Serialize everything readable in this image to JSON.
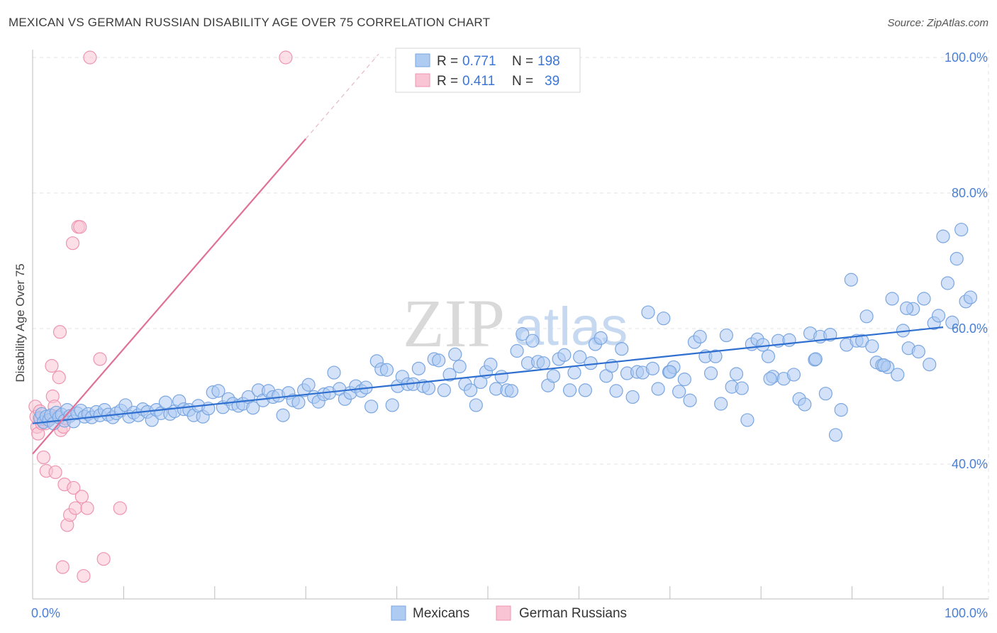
{
  "title": "MEXICAN VS GERMAN RUSSIAN DISABILITY AGE OVER 75 CORRELATION CHART",
  "source": "Source: ZipAtlas.com",
  "watermark": {
    "zip": "ZIP",
    "atlas": "atlas"
  },
  "colors": {
    "blue_fill": "#aecbf2",
    "blue_stroke": "#7aa6e0",
    "blue_line": "#2f6fd0",
    "pink_fill": "#f9c4d3",
    "pink_stroke": "#ee94b1",
    "pink_line": "#e07098",
    "tick_label": "#4a7fd4",
    "grid": "#e3e3e3"
  },
  "legend": {
    "rows": [
      {
        "r_label": "R =",
        "r_value": "0.771",
        "n_label": "N =",
        "n_value": "198",
        "series": "blue"
      },
      {
        "r_label": "R =",
        "r_value": "0.411",
        "n_label": "N =",
        "n_value": "39",
        "series": "pink"
      }
    ]
  },
  "bottom_legend": [
    "Mexicans",
    "German Russians"
  ],
  "chart_data": {
    "type": "scatter",
    "title": "MEXICAN VS GERMAN RUSSIAN DISABILITY AGE OVER 75 CORRELATION CHART",
    "xlabel": "",
    "ylabel": "Disability Age Over 75",
    "xlim": [
      0,
      100
    ],
    "ylim": [
      20,
      102
    ],
    "x_tick_labels": [
      {
        "value": 0,
        "label": "0.0%"
      },
      {
        "value": 100,
        "label": "100.0%"
      }
    ],
    "y_tick_labels": [
      {
        "value": 40,
        "label": "40.0%"
      },
      {
        "value": 60,
        "label": "60.0%"
      },
      {
        "value": 80,
        "label": "80.0%"
      },
      {
        "value": 100,
        "label": "100.0%"
      }
    ],
    "series": [
      {
        "name": "Mexicans",
        "color": "blue",
        "R": 0.771,
        "N": 198,
        "trend": {
          "x": [
            0,
            100
          ],
          "y": [
            46.0,
            60.2
          ]
        },
        "points": [
          [
            0.8,
            46.8
          ],
          [
            1.0,
            47.4
          ],
          [
            1.2,
            46.2
          ],
          [
            1.5,
            47.0
          ],
          [
            1.8,
            46.5
          ],
          [
            2.0,
            47.2
          ],
          [
            2.3,
            46.0
          ],
          [
            2.6,
            47.6
          ],
          [
            2.9,
            46.9
          ],
          [
            3.2,
            47.3
          ],
          [
            3.5,
            46.4
          ],
          [
            3.8,
            48.0
          ],
          [
            4.1,
            47.1
          ],
          [
            4.5,
            46.3
          ],
          [
            4.9,
            47.5
          ],
          [
            5.3,
            47.9
          ],
          [
            5.7,
            47.0
          ],
          [
            6.1,
            47.4
          ],
          [
            6.5,
            46.9
          ],
          [
            7.0,
            47.7
          ],
          [
            7.4,
            47.2
          ],
          [
            7.9,
            48.0
          ],
          [
            8.3,
            47.3
          ],
          [
            8.8,
            46.9
          ],
          [
            9.2,
            47.5
          ],
          [
            9.7,
            47.9
          ],
          [
            10.2,
            48.7
          ],
          [
            10.6,
            47.0
          ],
          [
            11.1,
            47.6
          ],
          [
            11.6,
            47.2
          ],
          [
            12.1,
            48.1
          ],
          [
            12.6,
            47.7
          ],
          [
            13.1,
            46.5
          ],
          [
            13.6,
            48.0
          ],
          [
            14.1,
            47.5
          ],
          [
            14.6,
            49.1
          ],
          [
            15.1,
            47.4
          ],
          [
            15.6,
            47.8
          ],
          [
            16.1,
            49.3
          ],
          [
            16.6,
            48.1
          ],
          [
            17.2,
            48.0
          ],
          [
            17.7,
            47.2
          ],
          [
            18.2,
            48.6
          ],
          [
            18.7,
            47.0
          ],
          [
            19.3,
            48.2
          ],
          [
            19.8,
            50.6
          ],
          [
            20.4,
            50.8
          ],
          [
            20.9,
            48.4
          ],
          [
            21.5,
            49.6
          ],
          [
            22.0,
            48.9
          ],
          [
            22.6,
            48.6
          ],
          [
            23.1,
            48.9
          ],
          [
            23.7,
            49.9
          ],
          [
            24.2,
            48.3
          ],
          [
            24.8,
            50.9
          ],
          [
            25.3,
            49.4
          ],
          [
            25.9,
            50.8
          ],
          [
            26.4,
            49.9
          ],
          [
            27.0,
            50.1
          ],
          [
            27.5,
            47.2
          ],
          [
            28.1,
            50.5
          ],
          [
            28.6,
            49.4
          ],
          [
            29.2,
            49.1
          ],
          [
            29.8,
            50.9
          ],
          [
            30.3,
            51.7
          ],
          [
            30.9,
            49.9
          ],
          [
            31.4,
            49.2
          ],
          [
            32.0,
            50.3
          ],
          [
            32.6,
            50.5
          ],
          [
            33.1,
            53.5
          ],
          [
            33.7,
            51.1
          ],
          [
            34.3,
            49.6
          ],
          [
            34.9,
            50.5
          ],
          [
            35.5,
            51.5
          ],
          [
            36.1,
            50.8
          ],
          [
            36.6,
            51.3
          ],
          [
            37.2,
            48.5
          ],
          [
            37.8,
            55.2
          ],
          [
            38.3,
            54.0
          ],
          [
            38.9,
            53.9
          ],
          [
            39.5,
            48.7
          ],
          [
            40.1,
            51.5
          ],
          [
            40.6,
            52.9
          ],
          [
            41.2,
            51.8
          ],
          [
            41.8,
            51.8
          ],
          [
            42.4,
            54.1
          ],
          [
            42.9,
            51.5
          ],
          [
            43.5,
            51.2
          ],
          [
            44.1,
            55.5
          ],
          [
            44.6,
            55.3
          ],
          [
            45.2,
            50.9
          ],
          [
            45.8,
            53.2
          ],
          [
            46.4,
            56.2
          ],
          [
            46.9,
            54.4
          ],
          [
            47.5,
            51.8
          ],
          [
            48.1,
            50.9
          ],
          [
            48.7,
            48.7
          ],
          [
            49.2,
            52.1
          ],
          [
            49.8,
            53.6
          ],
          [
            50.3,
            54.7
          ],
          [
            50.9,
            51.1
          ],
          [
            51.5,
            52.9
          ],
          [
            52.1,
            50.9
          ],
          [
            52.6,
            50.8
          ],
          [
            53.2,
            56.7
          ],
          [
            53.8,
            59.2
          ],
          [
            54.4,
            54.9
          ],
          [
            54.9,
            58.2
          ],
          [
            55.5,
            55.1
          ],
          [
            56.1,
            54.9
          ],
          [
            56.6,
            51.6
          ],
          [
            57.2,
            53.0
          ],
          [
            57.8,
            55.5
          ],
          [
            58.4,
            56.1
          ],
          [
            59.0,
            50.9
          ],
          [
            59.5,
            53.5
          ],
          [
            60.1,
            55.8
          ],
          [
            60.7,
            50.9
          ],
          [
            61.3,
            54.9
          ],
          [
            61.8,
            57.7
          ],
          [
            62.4,
            58.6
          ],
          [
            63.0,
            53.0
          ],
          [
            63.6,
            54.5
          ],
          [
            64.1,
            50.8
          ],
          [
            64.7,
            57.0
          ],
          [
            65.3,
            53.4
          ],
          [
            65.9,
            49.9
          ],
          [
            66.4,
            53.6
          ],
          [
            67.0,
            53.5
          ],
          [
            67.6,
            62.4
          ],
          [
            68.1,
            54.1
          ],
          [
            68.7,
            51.1
          ],
          [
            69.3,
            61.5
          ],
          [
            69.9,
            53.6
          ],
          [
            70.4,
            54.3
          ],
          [
            71.0,
            50.7
          ],
          [
            71.6,
            52.5
          ],
          [
            72.2,
            49.4
          ],
          [
            72.7,
            58.0
          ],
          [
            73.3,
            58.8
          ],
          [
            73.9,
            55.9
          ],
          [
            74.5,
            53.4
          ],
          [
            75.0,
            55.9
          ],
          [
            75.6,
            48.9
          ],
          [
            76.2,
            59.0
          ],
          [
            76.8,
            51.4
          ],
          [
            77.3,
            53.3
          ],
          [
            77.9,
            51.2
          ],
          [
            78.5,
            46.5
          ],
          [
            79.0,
            57.7
          ],
          [
            79.6,
            58.4
          ],
          [
            80.2,
            57.6
          ],
          [
            80.8,
            55.9
          ],
          [
            81.3,
            52.9
          ],
          [
            81.9,
            58.2
          ],
          [
            82.5,
            52.6
          ],
          [
            83.1,
            58.3
          ],
          [
            83.6,
            53.2
          ],
          [
            84.2,
            49.6
          ],
          [
            84.8,
            48.8
          ],
          [
            85.4,
            59.3
          ],
          [
            85.9,
            55.4
          ],
          [
            86.5,
            58.8
          ],
          [
            87.1,
            50.4
          ],
          [
            87.6,
            59.1
          ],
          [
            88.2,
            44.3
          ],
          [
            88.8,
            48.0
          ],
          [
            89.4,
            57.6
          ],
          [
            89.9,
            67.2
          ],
          [
            90.5,
            58.2
          ],
          [
            91.1,
            58.2
          ],
          [
            91.6,
            61.8
          ],
          [
            92.2,
            57.4
          ],
          [
            92.7,
            55.0
          ],
          [
            93.3,
            54.6
          ],
          [
            93.9,
            54.3
          ],
          [
            94.4,
            64.4
          ],
          [
            95.0,
            53.2
          ],
          [
            95.6,
            59.7
          ],
          [
            96.2,
            57.1
          ],
          [
            96.7,
            62.9
          ],
          [
            97.3,
            56.6
          ],
          [
            97.9,
            64.4
          ],
          [
            98.5,
            54.7
          ],
          [
            99.0,
            60.8
          ],
          [
            99.5,
            61.9
          ],
          [
            100.0,
            73.6
          ],
          [
            100.5,
            66.7
          ],
          [
            101.0,
            60.9
          ],
          [
            101.5,
            70.3
          ],
          [
            102.0,
            74.6
          ],
          [
            102.5,
            64.0
          ],
          [
            103.0,
            64.6
          ],
          [
            96.0,
            63.0
          ],
          [
            93.5,
            54.6
          ],
          [
            86.0,
            55.5
          ],
          [
            81.0,
            52.6
          ],
          [
            70.0,
            53.6
          ]
        ]
      },
      {
        "name": "German Russians",
        "color": "pink",
        "R": 0.411,
        "N": 39,
        "trend": {
          "x": [
            0,
            30
          ],
          "y": [
            41.5,
            88.0
          ]
        },
        "trend_dashed": {
          "x": [
            30,
            38
          ],
          "y": [
            88.0,
            100.5
          ]
        },
        "points": [
          [
            0.3,
            48.5
          ],
          [
            0.4,
            47.0
          ],
          [
            0.5,
            45.5
          ],
          [
            0.6,
            44.5
          ],
          [
            0.8,
            47.8
          ],
          [
            1.0,
            46.0
          ],
          [
            1.2,
            41.0
          ],
          [
            1.5,
            39.0
          ],
          [
            1.7,
            46.5
          ],
          [
            1.9,
            47.0
          ],
          [
            2.1,
            54.5
          ],
          [
            2.2,
            50.0
          ],
          [
            2.4,
            48.5
          ],
          [
            2.5,
            38.8
          ],
          [
            2.7,
            47.0
          ],
          [
            2.9,
            52.8
          ],
          [
            3.0,
            59.5
          ],
          [
            3.1,
            45.0
          ],
          [
            3.3,
            24.8
          ],
          [
            3.4,
            45.5
          ],
          [
            3.5,
            37.0
          ],
          [
            3.6,
            46.8
          ],
          [
            3.8,
            31.0
          ],
          [
            4.1,
            32.5
          ],
          [
            4.4,
            72.6
          ],
          [
            4.5,
            36.5
          ],
          [
            4.7,
            33.5
          ],
          [
            5.0,
            75.0
          ],
          [
            5.2,
            75.0
          ],
          [
            5.4,
            35.2
          ],
          [
            5.6,
            23.5
          ],
          [
            6.0,
            33.5
          ],
          [
            6.3,
            100.0
          ],
          [
            7.4,
            55.5
          ],
          [
            7.8,
            26.0
          ],
          [
            9.6,
            33.5
          ],
          [
            27.8,
            100.0
          ],
          [
            1.4,
            46.0
          ],
          [
            0.9,
            46.6
          ]
        ]
      }
    ]
  }
}
